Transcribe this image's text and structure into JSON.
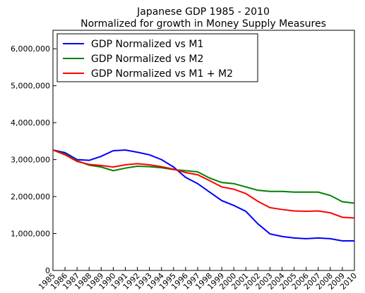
{
  "chart_data": {
    "type": "line",
    "title": "Japanese GDP 1985 - 2010",
    "subtitle": "Normalized for growth in Money Supply Measures",
    "x": [
      1985,
      1986,
      1987,
      1988,
      1989,
      1990,
      1991,
      1992,
      1993,
      1994,
      1995,
      1996,
      1997,
      1998,
      1999,
      2000,
      2001,
      2002,
      2003,
      2004,
      2005,
      2006,
      2007,
      2008,
      2009,
      2010
    ],
    "xlim": [
      1985,
      2010
    ],
    "xticks": [
      1985,
      1986,
      1987,
      1988,
      1989,
      1990,
      1991,
      1992,
      1993,
      1994,
      1995,
      1996,
      1997,
      1998,
      1999,
      2000,
      2001,
      2002,
      2003,
      2004,
      2005,
      2006,
      2007,
      2008,
      2009,
      2010
    ],
    "ylim": [
      0,
      6500000
    ],
    "yticks": [
      0,
      {
        "value": 1000000,
        "label": "1,000,000"
      },
      {
        "value": 2000000,
        "label": "2,000,000"
      },
      {
        "value": 3000000,
        "label": "3,000,000"
      },
      {
        "value": 4000000,
        "label": "4,000,000"
      },
      {
        "value": 5000000,
        "label": "5,000,000"
      },
      {
        "value": 6000000,
        "label": "6,000,000"
      }
    ],
    "legend": "upper left",
    "series": [
      {
        "name": "GDP Normalized vs M1",
        "color": "#0000ff",
        "values": [
          3260000,
          3190000,
          3000000,
          2980000,
          3090000,
          3240000,
          3260000,
          3200000,
          3130000,
          3000000,
          2800000,
          2520000,
          2350000,
          2120000,
          1890000,
          1760000,
          1600000,
          1260000,
          990000,
          920000,
          880000,
          860000,
          880000,
          860000,
          800000,
          800000
        ]
      },
      {
        "name": "GDP Normalized vs M2",
        "color": "#008000",
        "values": [
          3260000,
          3150000,
          2970000,
          2850000,
          2800000,
          2700000,
          2770000,
          2820000,
          2810000,
          2780000,
          2730000,
          2700000,
          2670000,
          2500000,
          2380000,
          2350000,
          2260000,
          2170000,
          2140000,
          2140000,
          2120000,
          2120000,
          2120000,
          2030000,
          1860000,
          1820000
        ]
      },
      {
        "name": "GDP Normalized vs M1 + M2",
        "color": "#ff0000",
        "values": [
          3260000,
          3130000,
          2950000,
          2870000,
          2840000,
          2800000,
          2860000,
          2890000,
          2860000,
          2810000,
          2740000,
          2650000,
          2590000,
          2430000,
          2260000,
          2200000,
          2080000,
          1870000,
          1700000,
          1650000,
          1610000,
          1600000,
          1610000,
          1560000,
          1440000,
          1420000
        ]
      }
    ]
  }
}
